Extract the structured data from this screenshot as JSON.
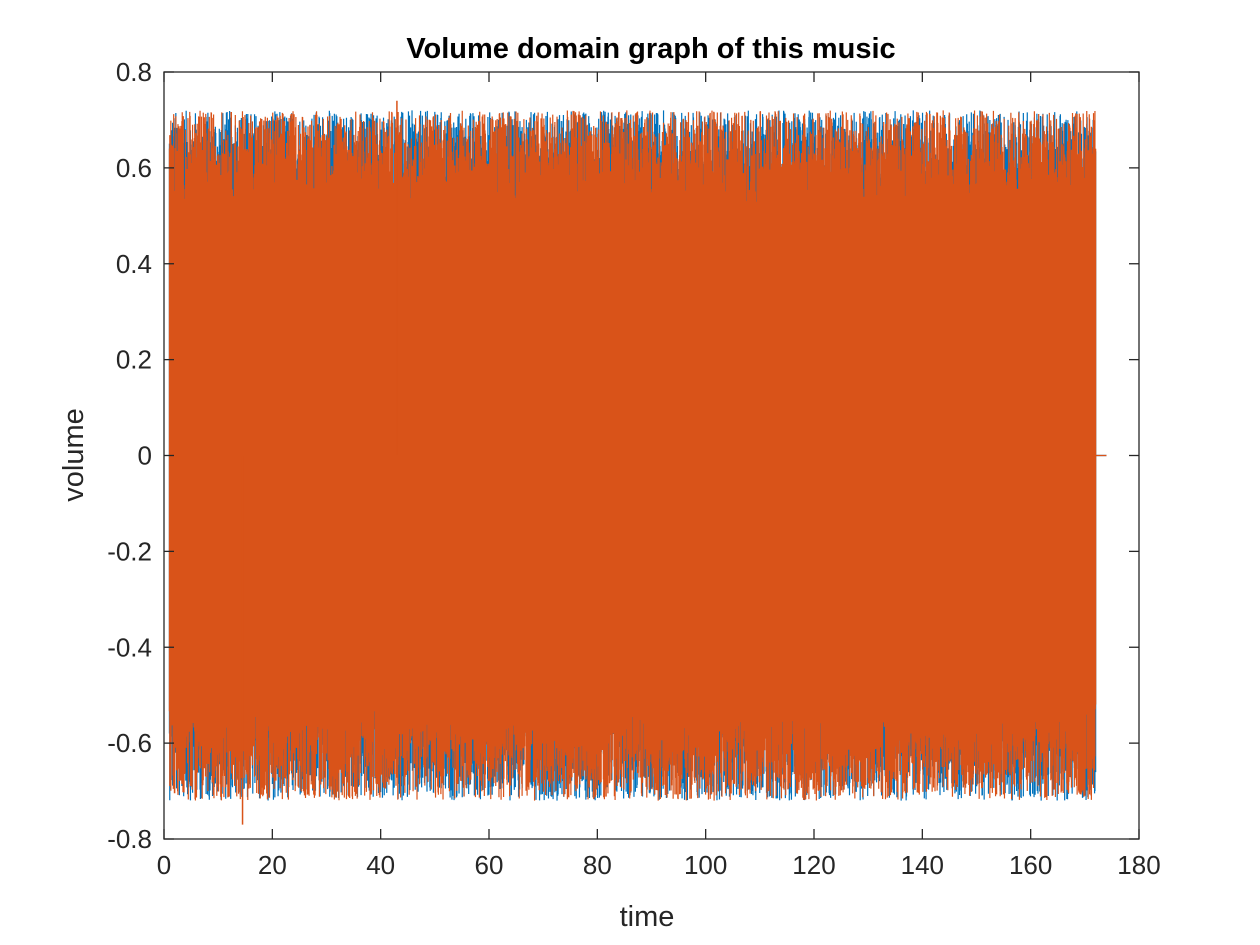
{
  "chart_data": {
    "type": "line",
    "title": "Volume domain graph of this music",
    "xlabel": "time",
    "ylabel": "volume",
    "xlim": [
      0,
      180
    ],
    "ylim": [
      -0.8,
      0.8
    ],
    "xticks": [
      "0",
      "20",
      "40",
      "60",
      "80",
      "100",
      "120",
      "140",
      "160",
      "180"
    ],
    "yticks": [
      "0.8",
      "0.6",
      "0.4",
      "0.2",
      "0",
      "-0.2",
      "-0.4",
      "-0.6",
      "-0.8"
    ],
    "grid": false,
    "legend": "none",
    "signal_time_range": [
      1,
      172
    ],
    "tail_zero_until": 174,
    "series": [
      {
        "color": "#0072BD",
        "envelope_upper": 0.72,
        "envelope_lower": -0.72
      },
      {
        "color": "#D95319",
        "envelope_upper": 0.72,
        "envelope_lower": -0.72,
        "max_value": 0.74,
        "min_value": -0.77
      }
    ]
  }
}
